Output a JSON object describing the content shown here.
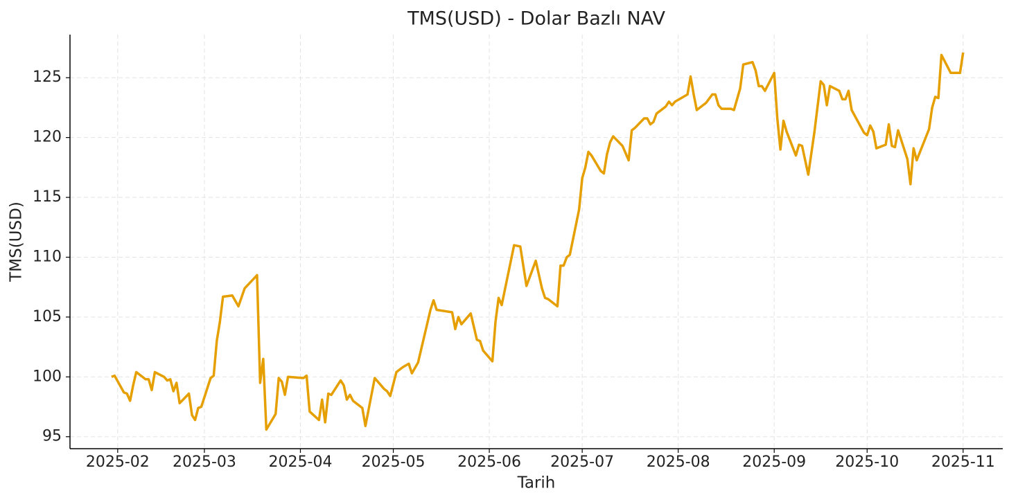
{
  "chart_data": {
    "type": "line",
    "title": "TMS(USD) - Dolar Bazlı NAV",
    "x_label": "Tarih",
    "y_label": "TMS(USD)",
    "x": [
      29,
      30,
      33,
      34,
      35,
      36,
      37,
      39,
      40,
      41,
      42,
      43,
      46,
      47,
      48,
      49,
      50,
      51,
      54,
      55,
      56,
      57,
      58,
      61,
      62,
      63,
      64,
      65,
      68,
      70,
      72,
      76,
      77,
      78,
      79,
      82,
      83,
      84,
      85,
      86,
      91,
      92,
      93,
      96,
      97,
      98,
      99,
      100,
      103,
      104,
      105,
      106,
      107,
      110,
      111,
      114,
      117,
      118,
      119,
      121,
      123,
      125,
      126,
      128,
      132,
      133,
      134,
      139,
      140,
      141,
      142,
      145,
      147,
      148,
      149,
      152,
      153,
      154,
      155,
      159,
      161,
      163,
      166,
      168,
      169,
      170,
      173,
      174,
      175,
      176,
      177,
      180,
      181,
      182,
      183,
      184,
      187,
      188,
      189,
      190,
      191,
      194,
      196,
      197,
      198,
      201,
      202,
      203,
      204,
      205,
      208,
      209,
      210,
      211,
      213,
      215,
      216,
      217,
      218,
      221,
      223,
      224,
      225,
      226,
      229,
      230,
      232,
      233,
      236,
      237,
      238,
      239,
      240,
      243,
      244,
      245,
      246,
      247,
      250,
      251,
      252,
      254,
      256,
      258,
      259,
      260,
      261,
      264,
      265,
      266,
      267,
      268,
      272,
      273,
      274,
      275,
      276,
      279,
      280,
      281,
      282,
      283,
      286,
      287,
      288,
      289,
      293,
      294,
      295,
      296,
      297,
      300,
      303,
      304
    ],
    "series": [
      {
        "name": "TMS(USD)",
        "color": "#e69f00",
        "values": [
          100.0,
          100.1,
          98.7,
          98.6,
          98.0,
          99.3,
          100.4,
          100.0,
          99.8,
          99.8,
          98.9,
          100.4,
          100.0,
          99.7,
          99.8,
          98.8,
          99.5,
          97.8,
          98.6,
          96.8,
          96.4,
          97.4,
          97.5,
          99.9,
          100.1,
          103.0,
          104.6,
          106.7,
          106.8,
          105.9,
          107.4,
          108.5,
          99.5,
          101.5,
          95.6,
          96.9,
          99.9,
          99.6,
          98.5,
          100.0,
          99.9,
          100.1,
          97.1,
          96.4,
          98.1,
          96.2,
          98.6,
          98.5,
          99.7,
          99.3,
          98.1,
          98.5,
          98.0,
          97.4,
          95.9,
          99.9,
          99.0,
          98.8,
          98.4,
          100.4,
          100.8,
          101.1,
          100.3,
          101.2,
          105.6,
          106.4,
          105.6,
          105.4,
          104.0,
          105.0,
          104.4,
          105.3,
          103.1,
          103.0,
          102.2,
          101.3,
          104.6,
          106.6,
          106.0,
          111.0,
          110.9,
          107.6,
          109.7,
          107.4,
          106.6,
          106.5,
          105.9,
          109.3,
          109.3,
          110.0,
          110.2,
          114.0,
          116.6,
          117.5,
          118.8,
          118.5,
          117.2,
          117.0,
          118.6,
          119.6,
          120.1,
          119.3,
          118.1,
          120.6,
          120.8,
          121.6,
          121.6,
          121.1,
          121.3,
          122.0,
          122.6,
          123.0,
          122.7,
          123.0,
          123.3,
          123.6,
          125.1,
          123.6,
          122.3,
          122.9,
          123.6,
          123.6,
          122.7,
          122.4,
          122.4,
          122.3,
          124.1,
          126.1,
          126.3,
          125.6,
          124.3,
          124.3,
          123.9,
          125.4,
          121.6,
          119.0,
          121.4,
          120.5,
          118.5,
          119.4,
          119.3,
          116.9,
          120.5,
          124.7,
          124.4,
          122.7,
          124.3,
          123.9,
          123.2,
          123.2,
          123.9,
          122.3,
          120.4,
          120.2,
          121.0,
          120.5,
          119.1,
          119.4,
          121.1,
          119.3,
          119.2,
          120.6,
          118.2,
          116.1,
          119.1,
          118.1,
          120.7,
          122.5,
          123.4,
          123.3,
          126.9,
          125.4,
          125.4,
          127.1
        ]
      }
    ],
    "xlim": [
      15.6,
      316.8
    ],
    "xticks": [
      {
        "value": 31,
        "label": "2025-02"
      },
      {
        "value": 59,
        "label": "2025-03"
      },
      {
        "value": 90,
        "label": "2025-04"
      },
      {
        "value": 120,
        "label": "2025-05"
      },
      {
        "value": 151,
        "label": "2025-06"
      },
      {
        "value": 181,
        "label": "2025-07"
      },
      {
        "value": 212,
        "label": "2025-08"
      },
      {
        "value": 243,
        "label": "2025-09"
      },
      {
        "value": 273,
        "label": "2025-10"
      },
      {
        "value": 304,
        "label": "2025-11"
      }
    ],
    "ylim": [
      94.0,
      128.6
    ],
    "yticks": [
      95,
      100,
      105,
      110,
      115,
      120,
      125
    ],
    "grid": true
  }
}
